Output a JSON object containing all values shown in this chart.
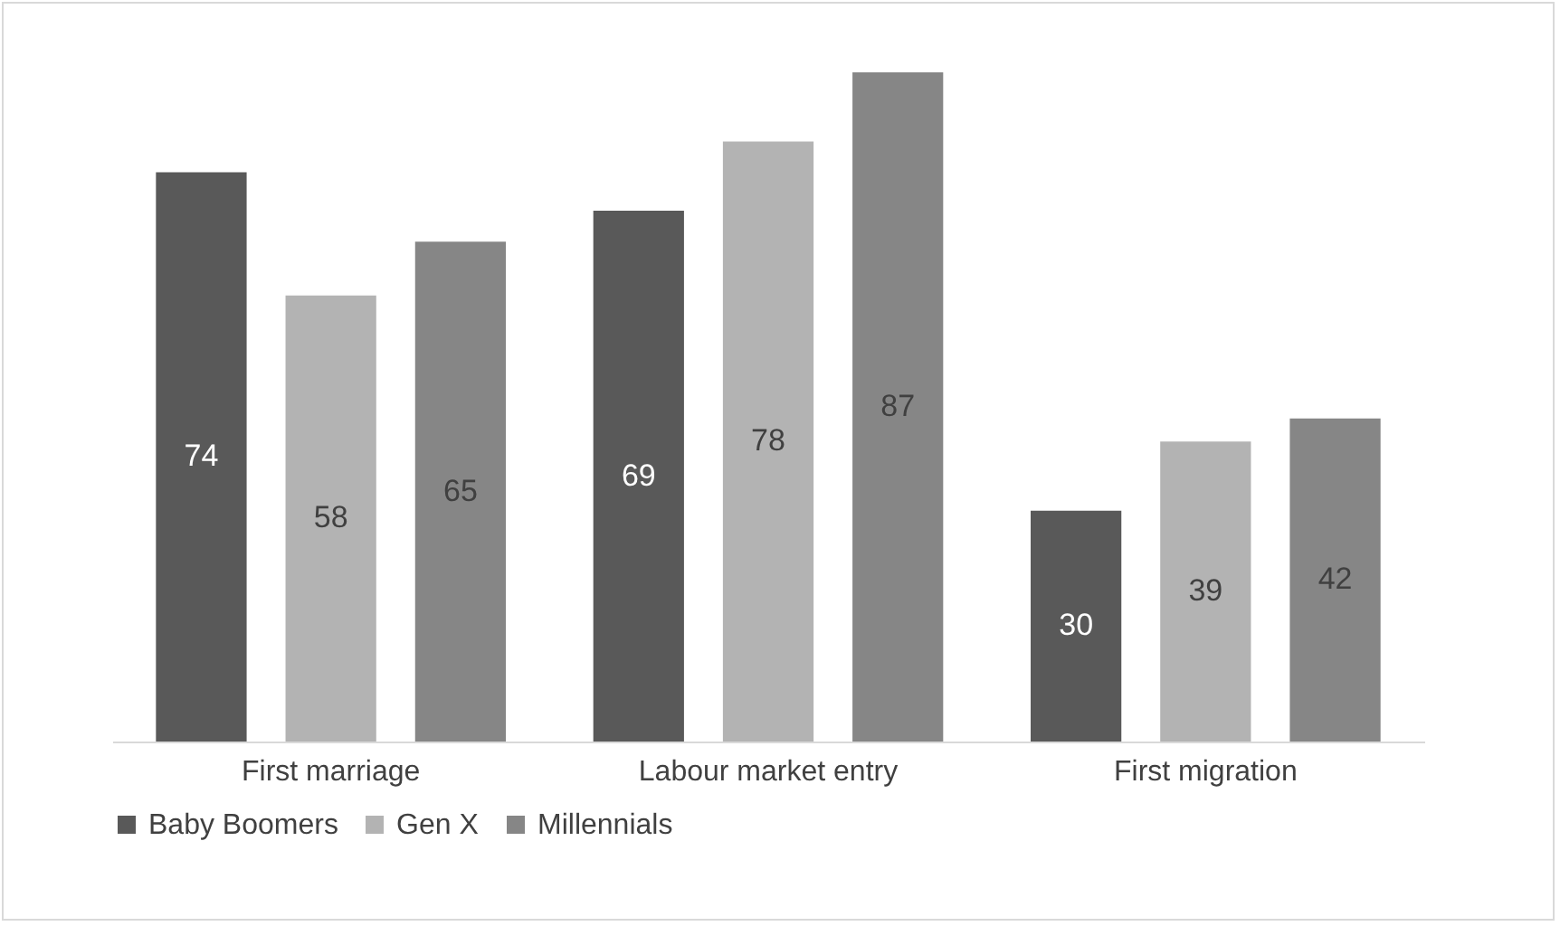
{
  "chart_data": {
    "type": "bar",
    "categories": [
      "First marriage",
      "Labour market entry",
      "First migration"
    ],
    "series": [
      {
        "name": "Baby Boomers",
        "color": "#595959",
        "values": [
          74,
          69,
          30
        ]
      },
      {
        "name": "Gen X",
        "color": "#b3b3b3",
        "values": [
          58,
          78,
          39
        ]
      },
      {
        "name": "Millennials",
        "color": "#868686",
        "values": [
          65,
          87,
          42
        ]
      }
    ],
    "data_labels": true,
    "legend": "bottom"
  }
}
